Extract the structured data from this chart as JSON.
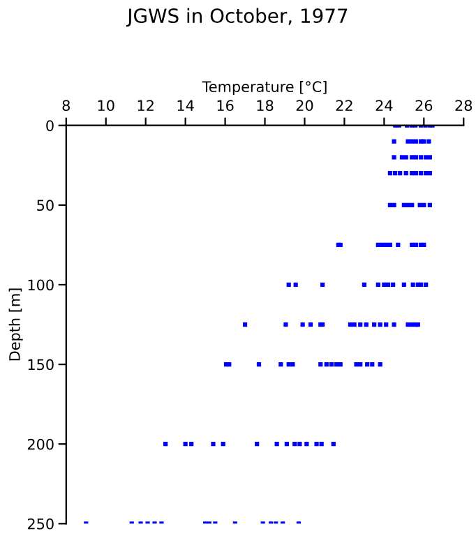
{
  "chart_data": {
    "type": "scatter",
    "title": "JGWS in October, 1977",
    "xlabel": "Temperature [°C]",
    "ylabel": "Depth [m]",
    "marker": "square",
    "grid": false,
    "xlim": [
      8,
      28
    ],
    "xticks": [
      8,
      10,
      12,
      14,
      16,
      18,
      20,
      22,
      24,
      26,
      28
    ],
    "ylim": [
      250,
      0
    ],
    "yticks": [
      0,
      50,
      100,
      150,
      200,
      250
    ],
    "series": [
      {
        "color": "#0000ff",
        "x": [
          24.56,
          24.75,
          25.15,
          25.38,
          25.57,
          25.85,
          26.08,
          26.3,
          26.43,
          24.5,
          25.2,
          25.4,
          25.6,
          25.85,
          26.0,
          26.25,
          24.5,
          24.9,
          25.1,
          25.4,
          25.6,
          25.85,
          26.1,
          26.3,
          24.3,
          24.55,
          24.8,
          25.1,
          25.4,
          25.6,
          25.85,
          26.1,
          26.3,
          24.3,
          24.5,
          25.0,
          25.2,
          25.4,
          25.8,
          26.0,
          26.3,
          21.7,
          21.8,
          23.7,
          23.9,
          24.1,
          24.3,
          24.7,
          25.4,
          25.6,
          25.85,
          26.0,
          19.2,
          19.55,
          20.9,
          23.0,
          23.7,
          24.0,
          24.2,
          24.45,
          25.0,
          25.45,
          25.7,
          25.85,
          26.1,
          17.0,
          19.05,
          19.9,
          20.3,
          20.8,
          20.9,
          22.3,
          22.5,
          22.8,
          23.1,
          23.5,
          23.8,
          24.1,
          24.5,
          25.2,
          25.4,
          25.6,
          25.7,
          16.05,
          16.2,
          17.7,
          18.8,
          19.2,
          19.4,
          20.8,
          21.1,
          21.35,
          21.6,
          21.8,
          22.6,
          22.8,
          23.15,
          23.4,
          23.8,
          13.0,
          14.0,
          14.3,
          15.4,
          15.9,
          17.6,
          18.6,
          19.1,
          19.5,
          19.75,
          20.1,
          20.6,
          20.85,
          21.45,
          9.0,
          11.3,
          11.75,
          12.1,
          12.45,
          12.8,
          15.0,
          15.2,
          15.5,
          16.5,
          17.9,
          18.3,
          18.55,
          18.9,
          19.7
        ],
        "values": [
          0,
          0,
          0,
          0,
          0,
          0,
          0,
          0,
          0,
          10,
          10,
          10,
          10,
          10,
          10,
          10,
          20,
          20,
          20,
          20,
          20,
          20,
          20,
          20,
          30,
          30,
          30,
          30,
          30,
          30,
          30,
          30,
          30,
          50,
          50,
          50,
          50,
          50,
          50,
          50,
          50,
          75,
          75,
          75,
          75,
          75,
          75,
          75,
          75,
          75,
          75,
          75,
          100,
          100,
          100,
          100,
          100,
          100,
          100,
          100,
          100,
          100,
          100,
          100,
          100,
          125,
          125,
          125,
          125,
          125,
          125,
          125,
          125,
          125,
          125,
          125,
          125,
          125,
          125,
          125,
          125,
          125,
          125,
          150,
          150,
          150,
          150,
          150,
          150,
          150,
          150,
          150,
          150,
          150,
          150,
          150,
          150,
          150,
          150,
          200,
          200,
          200,
          200,
          200,
          200,
          200,
          200,
          200,
          200,
          200,
          200,
          200,
          200,
          250,
          250,
          250,
          250,
          250,
          250,
          250,
          250,
          250,
          250,
          250,
          250,
          250,
          250,
          250
        ]
      }
    ]
  }
}
